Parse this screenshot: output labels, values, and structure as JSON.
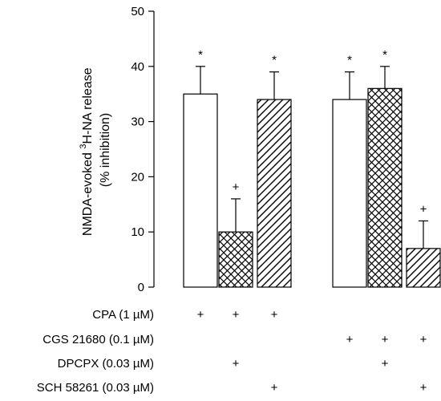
{
  "chart_data": {
    "type": "bar",
    "ylabel_line1_prefix": "NMDA-evoked ",
    "ylabel_line1_sup": "3",
    "ylabel_line1_suffix": "H-NA release",
    "ylabel_line2": "(% inhibition)",
    "ylim": [
      0,
      50
    ],
    "yticks": [
      0,
      10,
      20,
      30,
      40,
      50
    ],
    "ytick_labels": [
      "0",
      "10",
      "20",
      "30",
      "40",
      "50"
    ],
    "groups": [
      {
        "bars": [
          {
            "value": 35,
            "error": 5,
            "pattern": "open",
            "marker": "*"
          },
          {
            "value": 10,
            "error": 6,
            "pattern": "crosshatch",
            "marker": "+"
          },
          {
            "value": 34,
            "error": 5,
            "pattern": "diagonal",
            "marker": "*"
          }
        ]
      },
      {
        "bars": [
          {
            "value": 34,
            "error": 5,
            "pattern": "open",
            "marker": "*"
          },
          {
            "value": 36,
            "error": 4,
            "pattern": "crosshatch",
            "marker": "*"
          },
          {
            "value": 7,
            "error": 5,
            "pattern": "diagonal",
            "marker": "+"
          }
        ]
      }
    ],
    "treatments": [
      {
        "label": "CPA (1 µM)",
        "marks": [
          [
            "+",
            "+",
            "+"
          ],
          [
            "",
            "",
            ""
          ]
        ]
      },
      {
        "label": "CGS 21680 (0.1 µM)",
        "marks": [
          [
            "",
            "",
            ""
          ],
          [
            "+",
            "+",
            "+"
          ]
        ]
      },
      {
        "label": "DPCPX (0.03 µM)",
        "marks": [
          [
            "",
            "+",
            ""
          ],
          [
            "",
            "+",
            ""
          ]
        ]
      },
      {
        "label": "SCH 58261 (0.03 µM)",
        "marks": [
          [
            "",
            "",
            "+"
          ],
          [
            "",
            "",
            "+"
          ]
        ]
      }
    ]
  }
}
